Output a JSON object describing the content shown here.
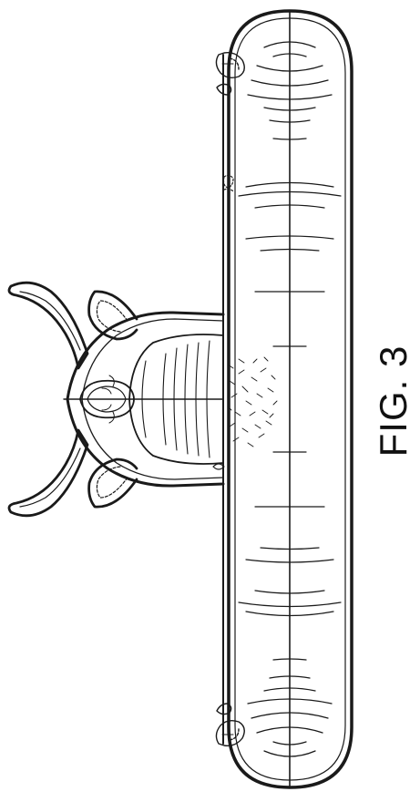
{
  "figure": {
    "label": "FIG. 3",
    "line_color": "#1a1a1a",
    "background": "#ffffff"
  }
}
